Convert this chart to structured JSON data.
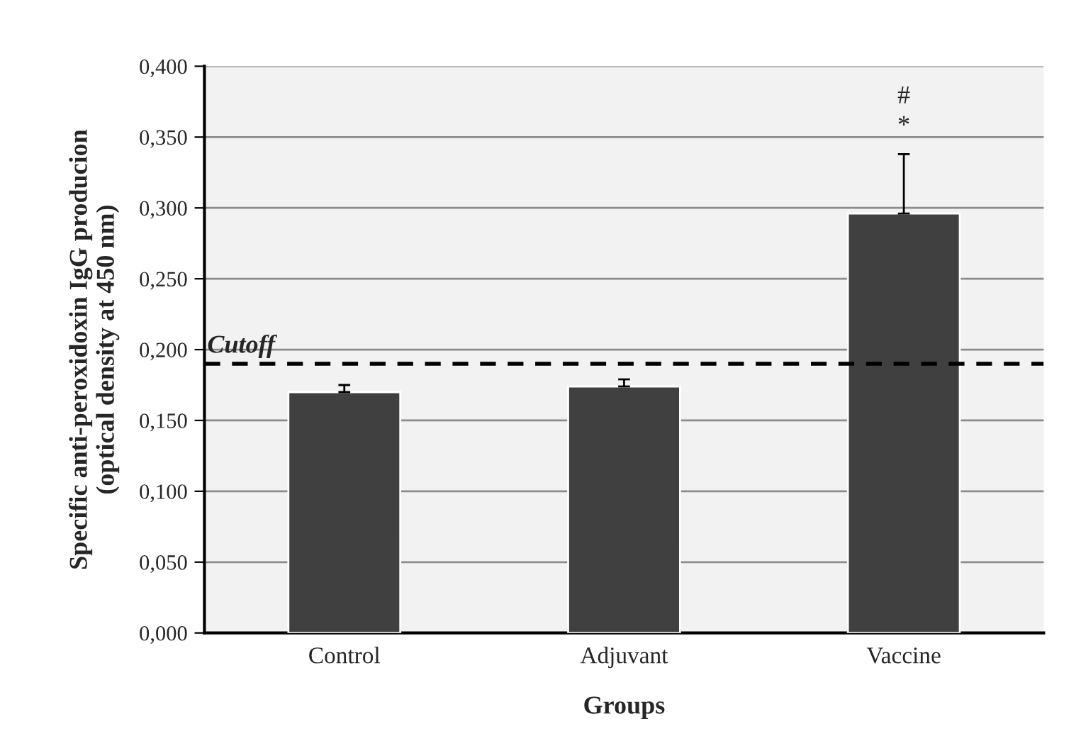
{
  "chart_data": {
    "type": "bar",
    "xlabel": "Groups",
    "ylabel": "Specific anti-peroxidoxin IgG producion\n(optical density at 450 nm)",
    "categories": [
      "Control",
      "Adjuvant",
      "Vaccine"
    ],
    "values": [
      0.17,
      0.174,
      0.296
    ],
    "errors": [
      [
        0.17,
        0.175
      ],
      [
        0.174,
        0.179
      ],
      [
        0.296,
        0.338
      ]
    ],
    "color": "#404040",
    "ylim": [
      0,
      0.4
    ],
    "yticks": [
      {
        "value": 0,
        "label": "0,000"
      },
      {
        "value": 0.05,
        "label": "0,050"
      },
      {
        "value": 0.1,
        "label": "0,100"
      },
      {
        "value": 0.15,
        "label": "0,150"
      },
      {
        "value": 0.2,
        "label": "0,200"
      },
      {
        "value": 0.25,
        "label": "0,250"
      },
      {
        "value": 0.3,
        "label": "0,300"
      },
      {
        "value": 0.35,
        "label": "0,350"
      },
      {
        "value": 0.4,
        "label": "0,400"
      }
    ],
    "grid": "y",
    "ref_lines": [
      {
        "axis": "y",
        "value": 0.19,
        "label": "Cutoff",
        "color": "#000000",
        "line_style": "dashed"
      }
    ],
    "annotations": [
      "*",
      "#"
    ]
  }
}
